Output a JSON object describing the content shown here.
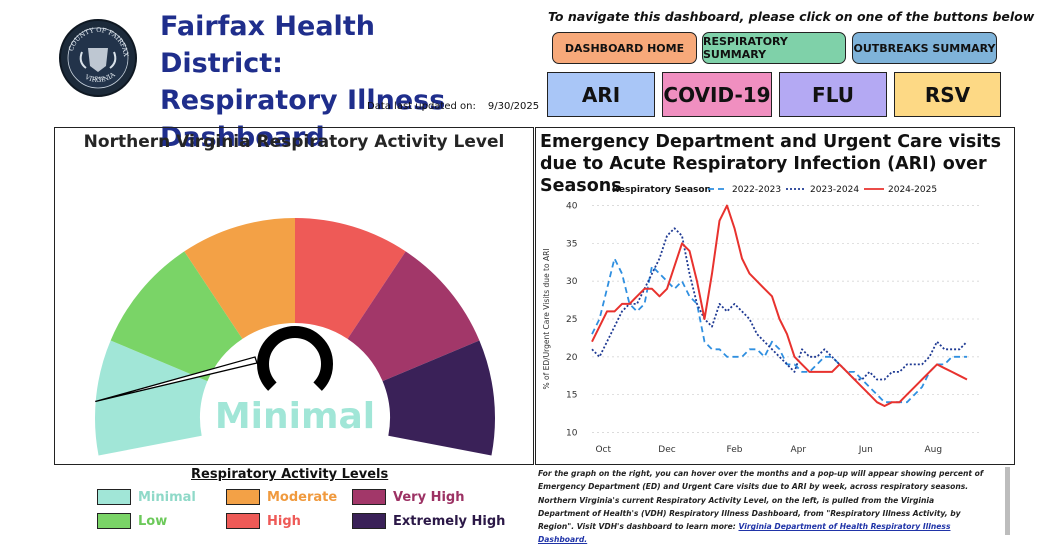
{
  "header": {
    "title_line1": "Fairfax Health District:",
    "title_line2": "Respiratory Illness",
    "title_line3": "Dashboard",
    "updated_label": "Data last updated on:",
    "updated_value": "9/30/2025",
    "seal": {
      "top_text": "COUNTY OF FAIRFAX",
      "year": "1742",
      "bottom_text": "VIRGINIA"
    }
  },
  "nav": {
    "hint": "To navigate this dashboard, please click on one of the buttons below",
    "buttons": [
      {
        "label": "DASHBOARD HOME",
        "color": "#f7a97a"
      },
      {
        "label": "RESPIRATORY SUMMARY",
        "color": "#7fd1a9"
      },
      {
        "label": "OUTBREAKS SUMMARY",
        "color": "#7fb3d9"
      }
    ],
    "disease_buttons": [
      {
        "label": "ARI",
        "color": "#a9c6f7"
      },
      {
        "label": "COVID-19",
        "color": "#f08fc0"
      },
      {
        "label": "FLU",
        "color": "#b4a9f3"
      },
      {
        "label": "RSV",
        "color": "#fdd985"
      }
    ]
  },
  "gauge": {
    "title": "Northern Virginia Respiratory Activity Level",
    "current_level": "Minimal",
    "segments": [
      {
        "name": "Minimal",
        "color": "#a1e6d7"
      },
      {
        "name": "Low",
        "color": "#7ad467"
      },
      {
        "name": "Moderate",
        "color": "#f3a146"
      },
      {
        "name": "High",
        "color": "#ee5a57"
      },
      {
        "name": "Very High",
        "color": "#a23769"
      },
      {
        "name": "Extremely High",
        "color": "#3a2158"
      }
    ],
    "needle_fraction": 0.04
  },
  "legend_levels": {
    "title": "Respiratory Activity Levels",
    "items": [
      {
        "label": "Minimal",
        "color": "#a1e6d7",
        "text_color": "#8fd9c8"
      },
      {
        "label": "Low",
        "color": "#7ad467",
        "text_color": "#6cc95a"
      },
      {
        "label": "Moderate",
        "color": "#f3a146",
        "text_color": "#f09a3e"
      },
      {
        "label": "High",
        "color": "#ee5a57",
        "text_color": "#ee5a57"
      },
      {
        "label": "Very High",
        "color": "#a23769",
        "text_color": "#9c3264"
      },
      {
        "label": "Extremely High",
        "color": "#3a2158",
        "text_color": "#2b1847"
      }
    ]
  },
  "chart_note": {
    "text": "For the graph on the right, you can hover over the months and a pop-up will appear showing percent of Emergency Department (ED) and Urgent Care visits due to ARI by week, across respiratory seasons. Northern Virginia's current Respiratory Activity Level, on the left, is pulled from the Virginia Department of Health's (VDH) Respiratory Illness Dashboard, from \"Respiratory Illness Activity, by Region\". Visit VDH's dashboard to learn more: ",
    "link_text": "Virginia Department of Health Respiratory Illness Dashboard."
  },
  "chart_data": {
    "type": "line",
    "title": "Emergency Department and Urgent Care visits due to Acute Respiratory Infection (ARI) over Seasons",
    "legend_title": "Respiratory Season",
    "ylabel": "% of ED/Urgent Care Visits due to ARI",
    "xlabel": "",
    "ylim": [
      9,
      41
    ],
    "yticks": [
      10,
      15,
      20,
      25,
      30,
      35,
      40
    ],
    "xticks": [
      {
        "label": "Oct",
        "week": 1.5
      },
      {
        "label": "Dec",
        "week": 10
      },
      {
        "label": "Feb",
        "week": 19
      },
      {
        "label": "Apr",
        "week": 27.5
      },
      {
        "label": "Jun",
        "week": 36.5
      },
      {
        "label": "Aug",
        "week": 45.5
      }
    ],
    "x_range": [
      0,
      52
    ],
    "legend_position": "top",
    "series": [
      {
        "name": "2022-2023",
        "color": "#2f8fe0",
        "dash": "6,4",
        "values": [
          23,
          25,
          29,
          33,
          31,
          27,
          26,
          27,
          32,
          31,
          30,
          29,
          30,
          28,
          27,
          22,
          21,
          21,
          20,
          20,
          20,
          21,
          21,
          20,
          22,
          21,
          19,
          19,
          18,
          18,
          19,
          20,
          20,
          19,
          18,
          18,
          17,
          16,
          15,
          14,
          14,
          14,
          14,
          15,
          16,
          18,
          19,
          19,
          20,
          20,
          20
        ]
      },
      {
        "name": "2023-2024",
        "color": "#1f3a93",
        "dash": "2,2",
        "values": [
          21,
          20,
          22,
          24,
          26,
          27,
          27,
          29,
          31,
          33,
          36,
          37,
          36,
          31,
          27,
          25,
          24,
          27,
          26,
          27,
          26,
          25,
          23,
          22,
          21,
          20,
          19,
          18,
          21,
          20,
          20,
          21,
          20,
          19,
          18,
          17,
          17,
          18,
          17,
          17,
          18,
          18,
          19,
          19,
          19,
          20,
          22,
          21,
          21,
          21,
          22
        ]
      },
      {
        "name": "2024-2025",
        "color": "#e8322e",
        "dash": "",
        "values": [
          22,
          24,
          26,
          26,
          27,
          27,
          28,
          29,
          29,
          28,
          29,
          32,
          35,
          34,
          30,
          25,
          31,
          38,
          40,
          37,
          33,
          31,
          30,
          29,
          28,
          25,
          23,
          20,
          19,
          18,
          18,
          18,
          18,
          19,
          18,
          17,
          16,
          15,
          14,
          13.5,
          14,
          14,
          15,
          16,
          17,
          18,
          19,
          18.5,
          18,
          17.5,
          17
        ]
      }
    ]
  }
}
